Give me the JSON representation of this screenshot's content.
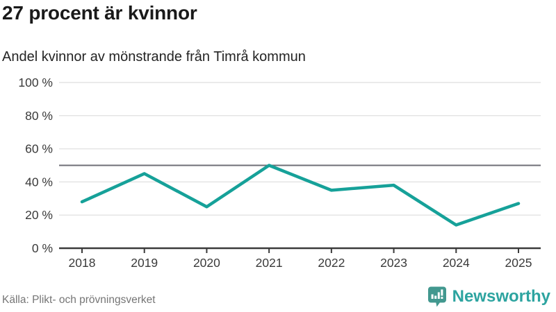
{
  "chart_data": {
    "type": "line",
    "title": "27 procent är kvinnor",
    "subtitle": "Andel kvinnor av mönstrande från Timrå kommun",
    "x": [
      "2018",
      "2019",
      "2020",
      "2021",
      "2022",
      "2023",
      "2024",
      "2025"
    ],
    "series": [
      {
        "name": "Andel kvinnor av mönstrande",
        "values": [
          28,
          45,
          25,
          50,
          35,
          38,
          14,
          27
        ],
        "color": "#16a199"
      }
    ],
    "ylim": [
      0,
      100
    ],
    "yticks": [
      0,
      20,
      40,
      60,
      80,
      100
    ],
    "ytick_labels": [
      "0 %",
      "20 %",
      "40 %",
      "60 %",
      "80 %",
      "100 %"
    ],
    "reference_line": {
      "value": 50,
      "color": "#6e6e76"
    },
    "grid": true,
    "grid_color": "#e4e4e4",
    "axis_color": "#3a3a3a",
    "tick_label_color": "#3a3a3a",
    "legend": "none"
  },
  "footer": {
    "source": "Källa: Plikt- och prövningsverket",
    "brand": {
      "name": "Newsworthy",
      "wordmark_color": "#2da4a0",
      "icon": "newsworthy-speech-bubble-bar-chart-icon",
      "icon_color": "#42988f"
    }
  }
}
